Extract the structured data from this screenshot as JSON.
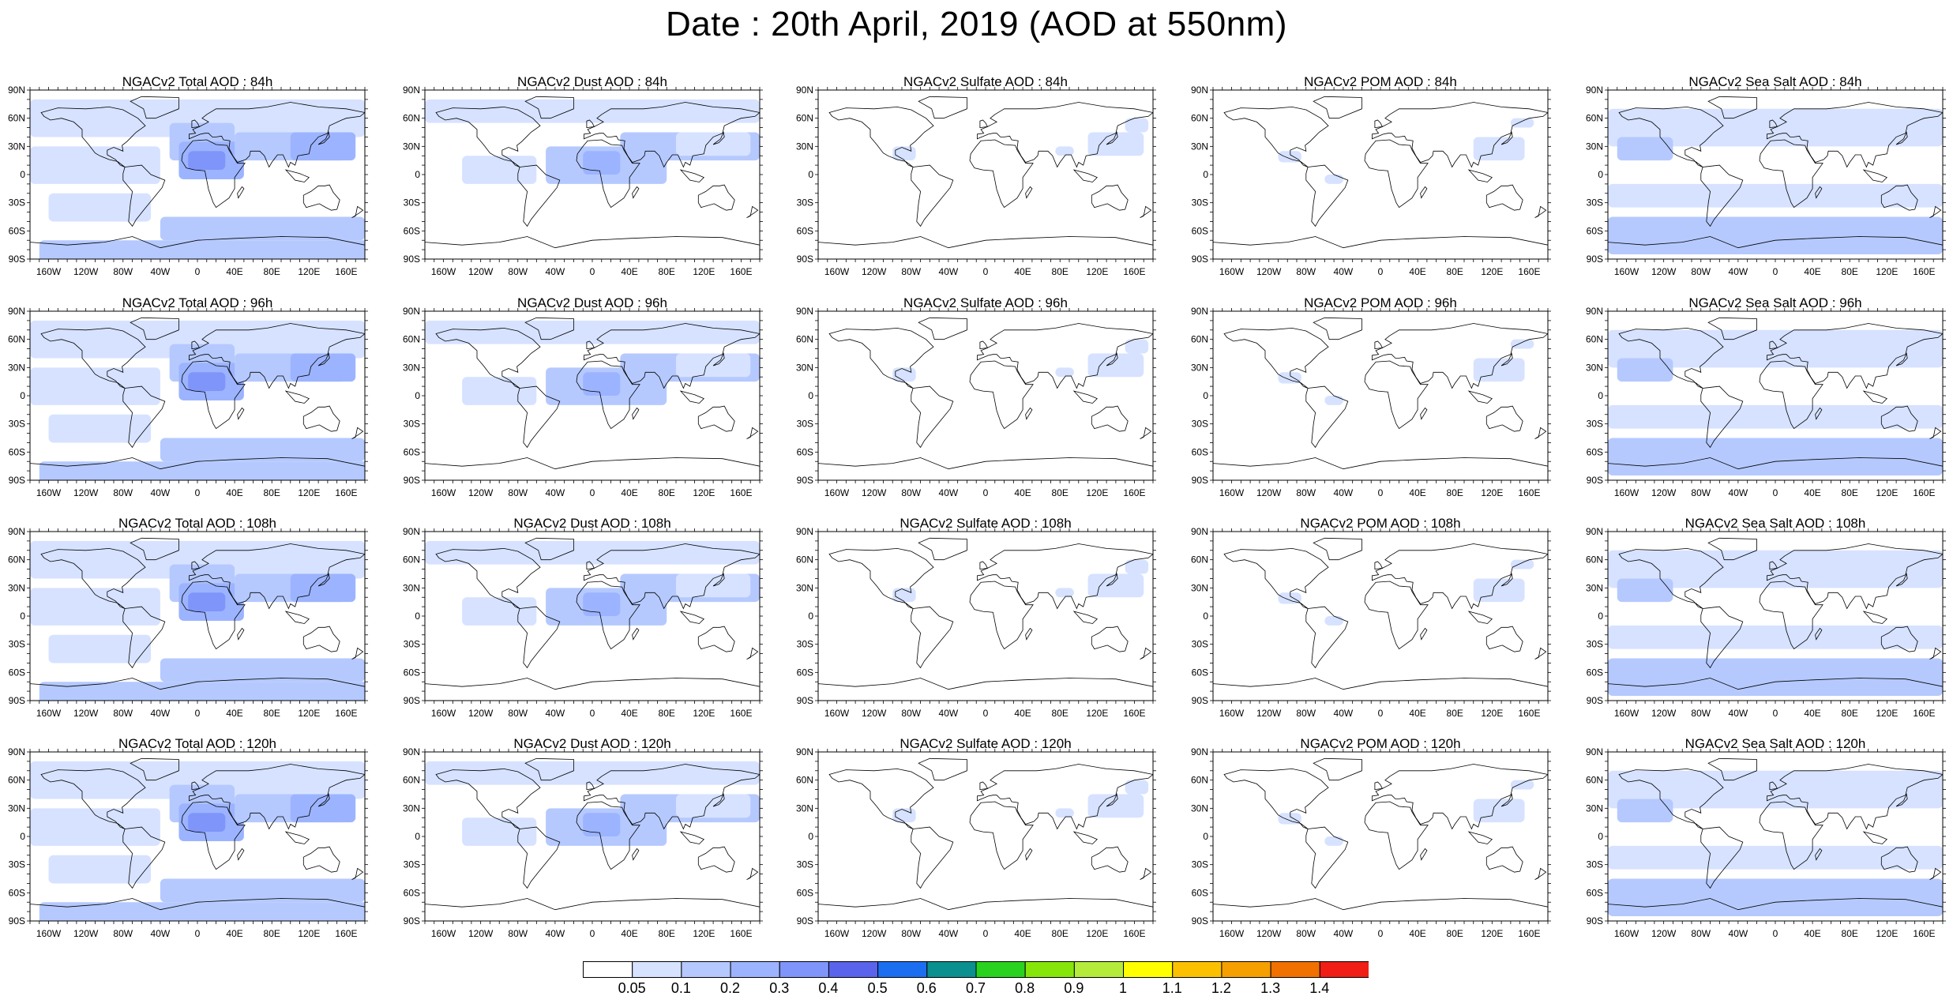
{
  "title": "Date : 20th April, 2019 (AOD at 550nm)",
  "lat_labels": [
    "90N",
    "60N",
    "30N",
    "0",
    "30S",
    "60S",
    "90S"
  ],
  "lon_labels": [
    "160W",
    "120W",
    "80W",
    "40W",
    "0",
    "40E",
    "80E",
    "120E",
    "160E"
  ],
  "columns": [
    "total",
    "dust",
    "sulfate",
    "pom",
    "seasalt"
  ],
  "panels": [
    [
      {
        "title": "NGACv2 Total AOD : 84h",
        "species": "total",
        "hour": 84
      },
      {
        "title": "NGACv2 Dust AOD : 84h",
        "species": "dust",
        "hour": 84
      },
      {
        "title": "NGACv2 Sulfate AOD : 84h",
        "species": "sulfate",
        "hour": 84
      },
      {
        "title": "NGACv2 POM AOD : 84h",
        "species": "pom",
        "hour": 84
      },
      {
        "title": "NGACv2 Sea Salt AOD : 84h",
        "species": "seasalt",
        "hour": 84
      }
    ],
    [
      {
        "title": "NGACv2 Total AOD : 96h",
        "species": "total",
        "hour": 96
      },
      {
        "title": "NGACv2 Dust AOD : 96h",
        "species": "dust",
        "hour": 96
      },
      {
        "title": "NGACv2 Sulfate AOD : 96h",
        "species": "sulfate",
        "hour": 96
      },
      {
        "title": "NGACv2 POM AOD : 96h",
        "species": "pom",
        "hour": 96
      },
      {
        "title": "NGACv2 Sea Salt AOD : 96h",
        "species": "seasalt",
        "hour": 96
      }
    ],
    [
      {
        "title": "NGACv2 Total AOD : 108h",
        "species": "total",
        "hour": 108
      },
      {
        "title": "NGACv2 Dust AOD : 108h",
        "species": "dust",
        "hour": 108
      },
      {
        "title": "NGACv2 Sulfate AOD : 108h",
        "species": "sulfate",
        "hour": 108
      },
      {
        "title": "NGACv2 POM AOD : 108h",
        "species": "pom",
        "hour": 108
      },
      {
        "title": "NGACv2 Sea Salt AOD : 108h",
        "species": "seasalt",
        "hour": 108
      }
    ],
    [
      {
        "title": "NGACv2 Total AOD : 120h",
        "species": "total",
        "hour": 120
      },
      {
        "title": "NGACv2 Dust AOD : 120h",
        "species": "dust",
        "hour": 120
      },
      {
        "title": "NGACv2 Sulfate AOD : 120h",
        "species": "sulfate",
        "hour": 120
      },
      {
        "title": "NGACv2 POM AOD : 120h",
        "species": "pom",
        "hour": 120
      },
      {
        "title": "NGACv2 Sea Salt  AOD : 120h",
        "species": "seasalt",
        "hour": 120
      }
    ]
  ],
  "colorbar": {
    "ticks": [
      "0.05",
      "0.1",
      "0.2",
      "0.3",
      "0.4",
      "0.5",
      "0.6",
      "0.7",
      "0.8",
      "0.9",
      "1",
      "1.1",
      "1.2",
      "1.3",
      "1.4"
    ],
    "colors": [
      "#ffffff",
      "#d6e2ff",
      "#b5c9ff",
      "#9cb4ff",
      "#7f95fa",
      "#5a63ec",
      "#1c6ef0",
      "#0b8f8f",
      "#29d21e",
      "#86e60a",
      "#b5ec3c",
      "#ffff00",
      "#fbc100",
      "#f5a000",
      "#f07000",
      "#f01e14"
    ]
  },
  "map_colors": {
    "land_outline": "#000000",
    "light": "#d6e2ff",
    "mid": "#b5c9ff",
    "dark": "#9cb4ff",
    "deep": "#7f95fa"
  }
}
